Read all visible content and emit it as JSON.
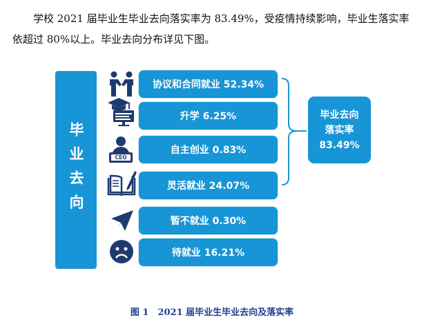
{
  "intro_text": "学校 2021 届毕业生毕业去向落实率为 83.49%，受疫情持续影响，毕业生落实率依超过 80%以上。毕业去向分布详见下图。",
  "side_label": "毕业去向",
  "items": [
    {
      "label": "协议和合同就业 52.34%",
      "icon": "handshake-icon"
    },
    {
      "label": "升学 6.25%",
      "icon": "graduation-cap-icon"
    },
    {
      "label": "自主创业 0.83%",
      "icon": "ceo-icon"
    },
    {
      "label": "灵活就业 24.07%",
      "icon": "book-pen-icon"
    },
    {
      "label": "暂不就业 0.30%",
      "icon": "paper-plane-icon"
    },
    {
      "label": "待就业 16.21%",
      "icon": "sad-face-icon"
    }
  ],
  "result": {
    "line1": "毕业去向",
    "line2": "落实率",
    "value": "83.49%"
  },
  "ceo_badge": "CEO",
  "caption": "图 1　2021 届毕业生毕业去向及落实率",
  "colors": {
    "accent": "#1795d6",
    "icon": "#1f3a6d",
    "caption": "#1f3f8f"
  }
}
